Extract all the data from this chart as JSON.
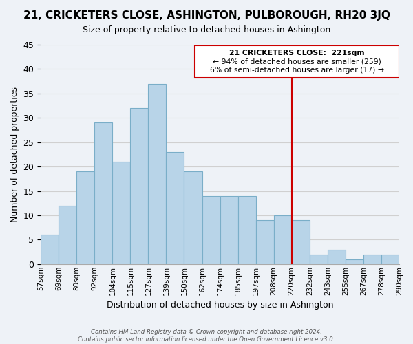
{
  "title": "21, CRICKETERS CLOSE, ASHINGTON, PULBOROUGH, RH20 3JQ",
  "subtitle": "Size of property relative to detached houses in Ashington",
  "xlabel": "Distribution of detached houses by size in Ashington",
  "ylabel": "Number of detached properties",
  "bin_labels": [
    "57sqm",
    "69sqm",
    "80sqm",
    "92sqm",
    "104sqm",
    "115sqm",
    "127sqm",
    "139sqm",
    "150sqm",
    "162sqm",
    "174sqm",
    "185sqm",
    "197sqm",
    "208sqm",
    "220sqm",
    "232sqm",
    "243sqm",
    "255sqm",
    "267sqm",
    "278sqm",
    "290sqm"
  ],
  "bar_heights": [
    6,
    12,
    19,
    29,
    21,
    32,
    37,
    23,
    19,
    14,
    14,
    14,
    9,
    10,
    9,
    2,
    3,
    1,
    2,
    2
  ],
  "bar_color": "#b8d4e8",
  "bar_edge_color": "#7aaec8",
  "grid_color": "#d0d0d0",
  "vline_color": "#cc0000",
  "ann_line1": "21 CRICKETERS CLOSE:  221sqm",
  "ann_line2": "← 94% of detached houses are smaller (259)",
  "ann_line3": "6% of semi-detached houses are larger (17) →",
  "footer_text": "Contains HM Land Registry data © Crown copyright and database right 2024.\nContains public sector information licensed under the Open Government Licence v3.0.",
  "ylim": [
    0,
    45
  ],
  "background_color": "#eef2f7"
}
